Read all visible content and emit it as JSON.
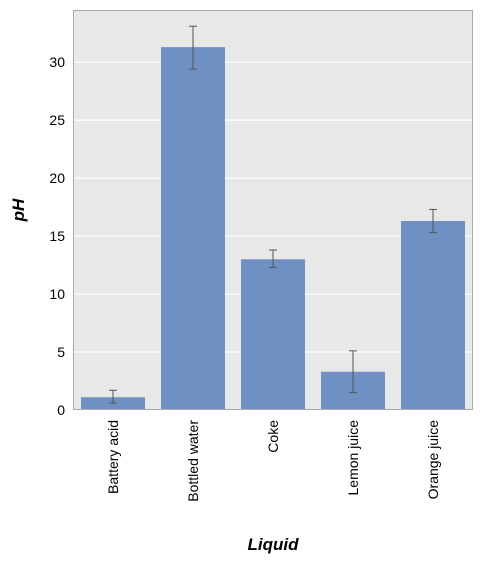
{
  "chart_data": {
    "type": "bar",
    "title": "",
    "xlabel": "Liquid",
    "ylabel": "pH",
    "categories": [
      "Battery acid",
      "Bottled water",
      "Coke",
      "Lemon juice",
      "Orange juice"
    ],
    "values": [
      1.1,
      31.3,
      13.0,
      3.3,
      16.3
    ],
    "error_low": [
      0.6,
      29.4,
      12.3,
      1.5,
      15.3
    ],
    "error_high": [
      1.7,
      33.1,
      13.8,
      5.1,
      17.3
    ],
    "ylim": [
      0,
      34.5
    ],
    "yticks": [
      0,
      5,
      10,
      15,
      20,
      25,
      30
    ],
    "grid": true,
    "colors": {
      "bar": "#7090c3",
      "background": "#e8e8e8",
      "grid": "#ffffff",
      "error": "#555555",
      "frame": "#aaaaaa"
    }
  }
}
